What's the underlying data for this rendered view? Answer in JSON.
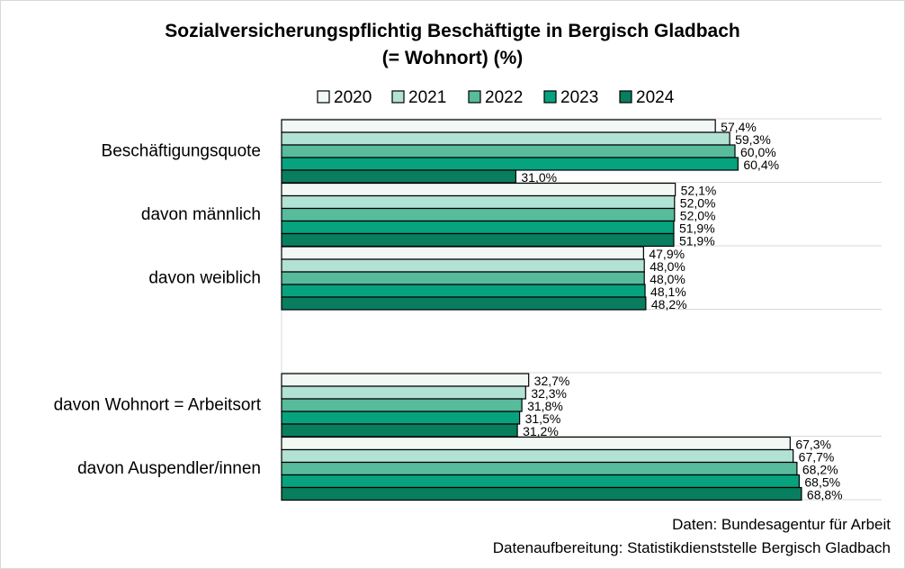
{
  "chart_data": {
    "type": "bar",
    "orientation": "horizontal",
    "title_line1": "Sozialversicherungspflichtig Beschäftigte in Bergisch Gladbach",
    "title_line2": "(= Wohnort) (%)",
    "legend_position": "top",
    "categories": [
      "Beschäftigungsquote",
      "davon männlich",
      "davon weiblich",
      "",
      "davon Wohnort = Arbeitsort",
      "davon Auspendler/innen"
    ],
    "series": [
      {
        "name": "2020",
        "color": "#f2f9f5",
        "values": [
          57.4,
          52.1,
          47.9,
          null,
          32.7,
          67.3
        ],
        "labels": [
          "57,4%",
          "52,1%",
          "47,9%",
          "",
          "32,7%",
          "67,3%"
        ]
      },
      {
        "name": "2021",
        "color": "#b2e2d4",
        "values": [
          59.3,
          52.0,
          48.0,
          null,
          32.3,
          67.7
        ],
        "labels": [
          "59,3%",
          "52,0%",
          "48,0%",
          "",
          "32,3%",
          "67,7%"
        ]
      },
      {
        "name": "2022",
        "color": "#57bb9c",
        "values": [
          60.0,
          52.0,
          48.0,
          null,
          31.8,
          68.2
        ],
        "labels": [
          "60,0%",
          "52,0%",
          "48,0%",
          "",
          "31,8%",
          "68,2%"
        ]
      },
      {
        "name": "2023",
        "color": "#07a27e",
        "values": [
          60.4,
          51.9,
          48.1,
          null,
          31.5,
          68.5
        ],
        "labels": [
          "60,4%",
          "51,9%",
          "48,1%",
          "",
          "31,5%",
          "68,5%"
        ]
      },
      {
        "name": "2024",
        "color": "#087e5f",
        "values": [
          31.0,
          51.9,
          48.2,
          null,
          31.2,
          68.8
        ],
        "labels": [
          "31,0%",
          "51,9%",
          "48,2%",
          "",
          "31,2%",
          "68,8%"
        ]
      }
    ],
    "xlim": [
      0,
      85
    ],
    "grid": true
  },
  "source_lines": [
    "Daten: Bundesagentur für Arbeit",
    "Datenaufbereitung: Statistikdienststelle Bergisch Gladbach"
  ]
}
